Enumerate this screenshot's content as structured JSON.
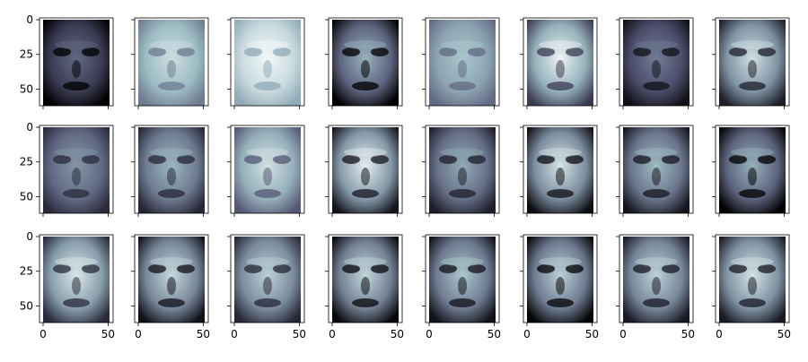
{
  "figure": {
    "rows": 3,
    "cols": 8,
    "colormap": "bone",
    "y_tick_labels": [
      "0",
      "25",
      "50"
    ],
    "x_tick_labels": [
      "0",
      "50"
    ]
  },
  "panels": [
    {
      "row": 0,
      "col": 0,
      "tone": 0.28,
      "contrast": 0.3
    },
    {
      "row": 0,
      "col": 1,
      "tone": 0.74,
      "contrast": 0.22
    },
    {
      "row": 0,
      "col": 2,
      "tone": 0.86,
      "contrast": 0.18
    },
    {
      "row": 0,
      "col": 3,
      "tone": 0.44,
      "contrast": 0.45
    },
    {
      "row": 0,
      "col": 4,
      "tone": 0.66,
      "contrast": 0.2
    },
    {
      "row": 0,
      "col": 5,
      "tone": 0.7,
      "contrast": 0.42
    },
    {
      "row": 0,
      "col": 6,
      "tone": 0.36,
      "contrast": 0.28
    },
    {
      "row": 0,
      "col": 7,
      "tone": 0.6,
      "contrast": 0.46
    },
    {
      "row": 1,
      "col": 0,
      "tone": 0.46,
      "contrast": 0.26
    },
    {
      "row": 1,
      "col": 1,
      "tone": 0.52,
      "contrast": 0.34
    },
    {
      "row": 1,
      "col": 2,
      "tone": 0.7,
      "contrast": 0.3
    },
    {
      "row": 1,
      "col": 3,
      "tone": 0.62,
      "contrast": 0.52
    },
    {
      "row": 1,
      "col": 4,
      "tone": 0.48,
      "contrast": 0.34
    },
    {
      "row": 1,
      "col": 5,
      "tone": 0.58,
      "contrast": 0.52
    },
    {
      "row": 1,
      "col": 6,
      "tone": 0.5,
      "contrast": 0.4
    },
    {
      "row": 1,
      "col": 7,
      "tone": 0.44,
      "contrast": 0.44
    },
    {
      "row": 2,
      "col": 0,
      "tone": 0.64,
      "contrast": 0.44
    },
    {
      "row": 2,
      "col": 1,
      "tone": 0.56,
      "contrast": 0.48
    },
    {
      "row": 2,
      "col": 2,
      "tone": 0.58,
      "contrast": 0.4
    },
    {
      "row": 2,
      "col": 3,
      "tone": 0.54,
      "contrast": 0.5
    },
    {
      "row": 2,
      "col": 4,
      "tone": 0.52,
      "contrast": 0.44
    },
    {
      "row": 2,
      "col": 5,
      "tone": 0.52,
      "contrast": 0.5
    },
    {
      "row": 2,
      "col": 6,
      "tone": 0.56,
      "contrast": 0.44
    },
    {
      "row": 2,
      "col": 7,
      "tone": 0.6,
      "contrast": 0.48
    }
  ]
}
